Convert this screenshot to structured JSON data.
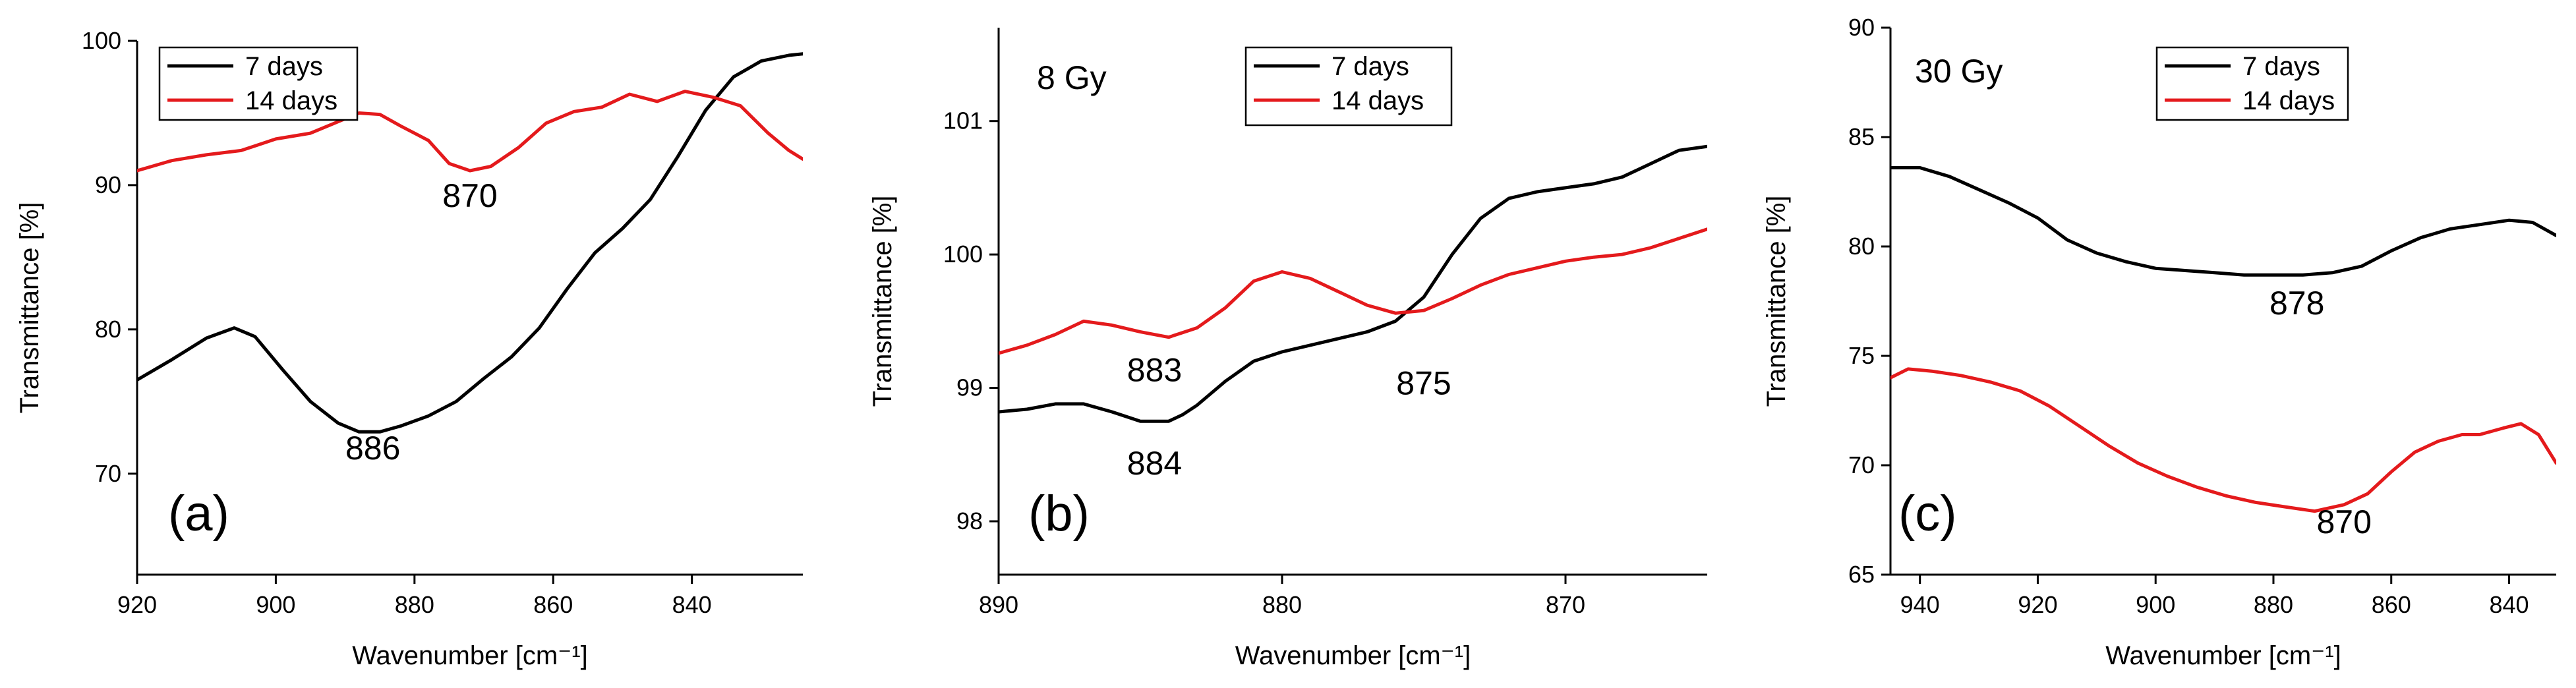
{
  "chart_data": [
    {
      "type": "line",
      "panel_label": "(a)",
      "title": "",
      "xlabel": "Wavenumber [cm⁻¹]",
      "ylabel": "Transmittance [%]",
      "xlim": [
        920,
        824
      ],
      "ylim": [
        63,
        100
      ],
      "xticks": [
        920,
        900,
        880,
        860,
        840
      ],
      "yticks": [
        70,
        80,
        90,
        100
      ],
      "legend_position": "top-left",
      "series": [
        {
          "name": "7 days",
          "color": "#000000",
          "x": [
            920,
            915,
            910,
            906,
            903,
            899,
            895,
            891,
            888,
            885,
            882,
            878,
            874,
            870,
            866,
            862,
            858,
            854,
            850,
            846,
            842,
            838,
            834,
            830,
            826,
            824
          ],
          "y": [
            76.5,
            77.9,
            79.4,
            80.1,
            79.5,
            77.2,
            75.0,
            73.5,
            72.9,
            72.9,
            73.3,
            74.0,
            75.0,
            76.6,
            78.1,
            80.1,
            82.8,
            85.3,
            87.0,
            89.0,
            92.0,
            95.2,
            97.5,
            98.6,
            99.0,
            99.1
          ]
        },
        {
          "name": "14 days",
          "color": "#e41a1c",
          "x": [
            920,
            915,
            910,
            905,
            900,
            895,
            891,
            888,
            885,
            882,
            878,
            875,
            872,
            869,
            865,
            861,
            857,
            853,
            849,
            845,
            841,
            837,
            833,
            829,
            826,
            824
          ],
          "y": [
            91.0,
            91.7,
            92.1,
            92.4,
            93.2,
            93.6,
            94.4,
            95.0,
            94.9,
            94.1,
            93.1,
            91.5,
            91.0,
            91.3,
            92.6,
            94.3,
            95.1,
            95.4,
            96.3,
            95.8,
            96.5,
            96.1,
            95.5,
            93.6,
            92.4,
            91.8
          ]
        }
      ],
      "annotations": [
        {
          "text": "886",
          "x": 886,
          "y": 71.0
        },
        {
          "text": "870",
          "x": 872,
          "y": 88.5
        }
      ]
    },
    {
      "type": "line",
      "panel_label": "(b)",
      "title": "8 Gy",
      "xlabel": "Wavenumber [cm⁻¹]",
      "ylabel": "Transmittance [%]",
      "xlim": [
        890,
        865
      ],
      "ylim": [
        97.6,
        101.7
      ],
      "xticks": [
        890,
        880,
        870
      ],
      "yticks": [
        98,
        99,
        100,
        101
      ],
      "legend_position": "top-right",
      "series": [
        {
          "name": "7 days",
          "color": "#000000",
          "x": [
            890,
            889,
            888,
            887,
            886,
            885,
            884,
            883.5,
            883,
            882,
            881,
            880,
            879,
            878,
            877,
            876,
            875,
            874,
            873,
            872,
            871,
            870,
            869,
            868,
            867,
            866,
            865
          ],
          "y": [
            98.82,
            98.84,
            98.88,
            98.88,
            98.82,
            98.75,
            98.75,
            98.8,
            98.87,
            99.05,
            99.2,
            99.27,
            99.32,
            99.37,
            99.42,
            99.5,
            99.68,
            100.0,
            100.27,
            100.42,
            100.47,
            100.5,
            100.53,
            100.58,
            100.68,
            100.78,
            100.81
          ]
        },
        {
          "name": "14 days",
          "color": "#e41a1c",
          "x": [
            890,
            889,
            888,
            887,
            886,
            885,
            884,
            883,
            882,
            881,
            880,
            879,
            878,
            877,
            876,
            875,
            874,
            873,
            872,
            871,
            870,
            869,
            868,
            867,
            866,
            865
          ],
          "y": [
            99.26,
            99.32,
            99.4,
            99.5,
            99.47,
            99.42,
            99.38,
            99.45,
            99.6,
            99.8,
            99.87,
            99.82,
            99.72,
            99.62,
            99.56,
            99.58,
            99.67,
            99.77,
            99.85,
            99.9,
            99.95,
            99.98,
            100.0,
            100.05,
            100.12,
            100.19
          ]
        }
      ],
      "annotations": [
        {
          "text": "883",
          "x": 884.5,
          "y": 99.05
        },
        {
          "text": "884",
          "x": 884.5,
          "y": 98.35
        },
        {
          "text": "875",
          "x": 875,
          "y": 98.95
        }
      ]
    },
    {
      "type": "line",
      "panel_label": "(c)",
      "title": "30 Gy",
      "xlabel": "Wavenumber [cm⁻¹]",
      "ylabel": "Transmittance [%]",
      "xlim": [
        945,
        832
      ],
      "ylim": [
        65,
        90
      ],
      "xticks": [
        940,
        920,
        900,
        880,
        860,
        840
      ],
      "yticks": [
        65,
        70,
        75,
        80,
        85,
        90
      ],
      "legend_position": "top-center",
      "series": [
        {
          "name": "7 days",
          "color": "#000000",
          "x": [
            945,
            940,
            935,
            930,
            925,
            920,
            915,
            910,
            905,
            900,
            895,
            890,
            885,
            880,
            875,
            870,
            865,
            860,
            855,
            850,
            845,
            840,
            836,
            832
          ],
          "y": [
            83.6,
            83.6,
            83.2,
            82.6,
            82.0,
            81.3,
            80.3,
            79.7,
            79.3,
            79.0,
            78.9,
            78.8,
            78.7,
            78.7,
            78.7,
            78.8,
            79.1,
            79.8,
            80.4,
            80.8,
            81.0,
            81.2,
            81.1,
            80.5
          ]
        },
        {
          "name": "14 days",
          "color": "#e41a1c",
          "x": [
            945,
            942,
            938,
            933,
            928,
            923,
            918,
            913,
            908,
            903,
            898,
            893,
            888,
            883,
            878,
            873,
            868,
            864,
            860,
            856,
            852,
            848,
            845,
            841,
            838,
            835,
            832
          ],
          "y": [
            74.0,
            74.4,
            74.3,
            74.1,
            73.8,
            73.4,
            72.7,
            71.8,
            70.9,
            70.1,
            69.5,
            69.0,
            68.6,
            68.3,
            68.1,
            67.9,
            68.2,
            68.7,
            69.7,
            70.6,
            71.1,
            71.4,
            71.4,
            71.7,
            71.9,
            71.4,
            70.1
          ]
        }
      ],
      "annotations": [
        {
          "text": "878",
          "x": 876,
          "y": 76.9
        },
        {
          "text": "870",
          "x": 868,
          "y": 66.9
        }
      ]
    }
  ]
}
